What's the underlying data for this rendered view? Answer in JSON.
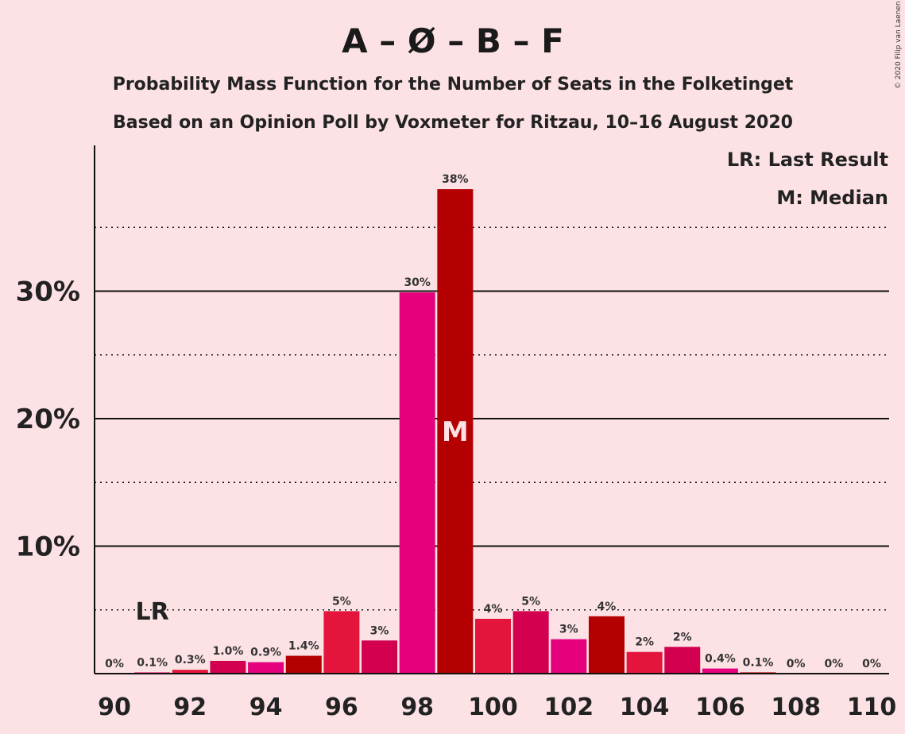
{
  "copyright": "© 2020 Filip van Laenen",
  "legend": {
    "last_result": "LR: Last Result",
    "median": "M: Median"
  },
  "markers": {
    "lr_label": "LR",
    "median_label": "M"
  },
  "chart_data": {
    "type": "bar",
    "title": "A – Ø – B – F",
    "subtitle": "Probability Mass Function for the Number of Seats in the Folketinget",
    "subtitle2": "Based on an Opinion Poll by Voxmeter for Ritzau, 10–16 August 2020",
    "xlabel": "",
    "ylabel": "",
    "ylim": [
      0,
      40
    ],
    "xlim": [
      90,
      110
    ],
    "x_ticks": [
      "90",
      "92",
      "94",
      "96",
      "98",
      "100",
      "102",
      "104",
      "106",
      "108",
      "110"
    ],
    "y_ticks": [
      {
        "value": 10,
        "label": "10%"
      },
      {
        "value": 20,
        "label": "20%"
      },
      {
        "value": 30,
        "label": "30%"
      }
    ],
    "last_result_seat": 91,
    "median_seat": 99,
    "categories": [
      90,
      91,
      92,
      93,
      94,
      95,
      96,
      97,
      98,
      99,
      100,
      101,
      102,
      103,
      104,
      105,
      106,
      107,
      108,
      109,
      110
    ],
    "values": [
      0,
      0.1,
      0.3,
      1.0,
      0.9,
      1.4,
      4.9,
      2.6,
      29.9,
      38.0,
      4.3,
      4.9,
      2.7,
      4.5,
      1.7,
      2.1,
      0.4,
      0.1,
      0,
      0,
      0
    ],
    "labels": [
      "0%",
      "0.1%",
      "0.3%",
      "1.0%",
      "0.9%",
      "1.4%",
      "5%",
      "3%",
      "30%",
      "38%",
      "4%",
      "5%",
      "3%",
      "4%",
      "2%",
      "2%",
      "0.4%",
      "0.1%",
      "0%",
      "0%",
      "0%"
    ],
    "colors": [
      "#e5186f",
      "#e5186f",
      "#e5143c",
      "#d3004f",
      "#e5007d",
      "#b40000",
      "#e5143c",
      "#d3004f",
      "#e5007d",
      "#b40000",
      "#e5143c",
      "#d3004f",
      "#e5007d",
      "#b40000",
      "#e5143c",
      "#d3004f",
      "#e5007d",
      "#b40000",
      "#e5143c",
      "#d3004f",
      "#e5007d"
    ],
    "grid": true,
    "legend_position": "top-right"
  }
}
